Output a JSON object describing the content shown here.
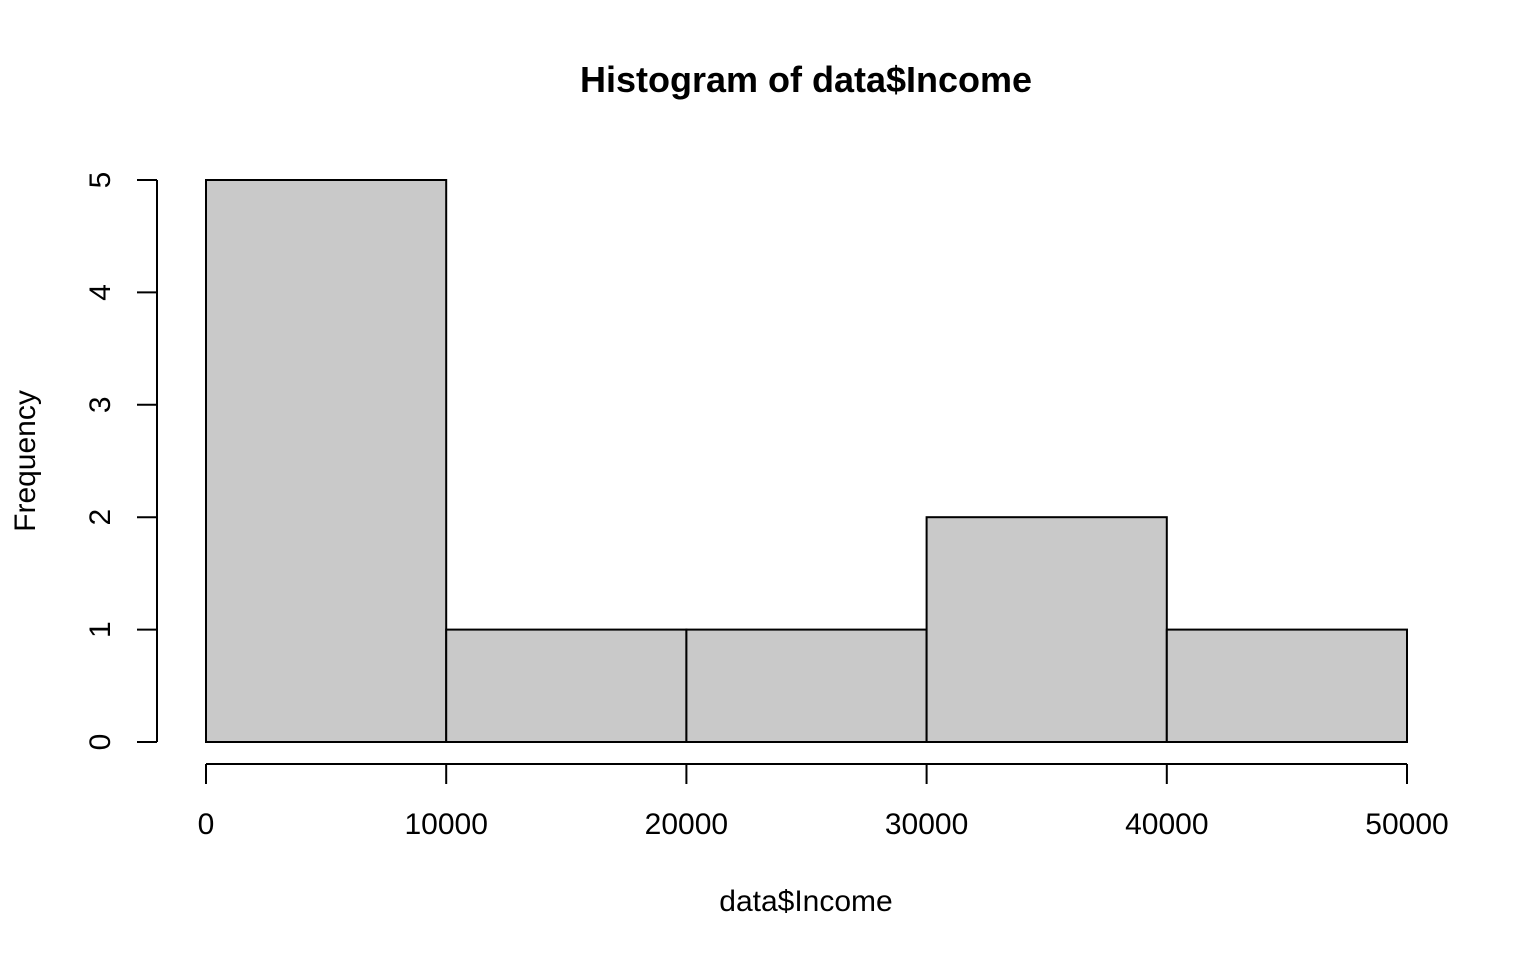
{
  "chart_data": {
    "type": "bar",
    "title": "Histogram of data$Income",
    "xlabel": "data$Income",
    "ylabel": "Frequency",
    "bins": [
      {
        "from": 0,
        "to": 10000,
        "count": 5
      },
      {
        "from": 10000,
        "to": 20000,
        "count": 1
      },
      {
        "from": 20000,
        "to": 30000,
        "count": 1
      },
      {
        "from": 30000,
        "to": 40000,
        "count": 2
      },
      {
        "from": 40000,
        "to": 50000,
        "count": 1
      }
    ],
    "xlim": [
      0,
      50000
    ],
    "ylim": [
      0,
      5
    ],
    "x_ticks": [
      "0",
      "10000",
      "20000",
      "30000",
      "40000",
      "50000"
    ],
    "y_ticks": [
      "0",
      "1",
      "2",
      "3",
      "4",
      "5"
    ],
    "bar_color": "#c9c9c9",
    "grid": false
  }
}
